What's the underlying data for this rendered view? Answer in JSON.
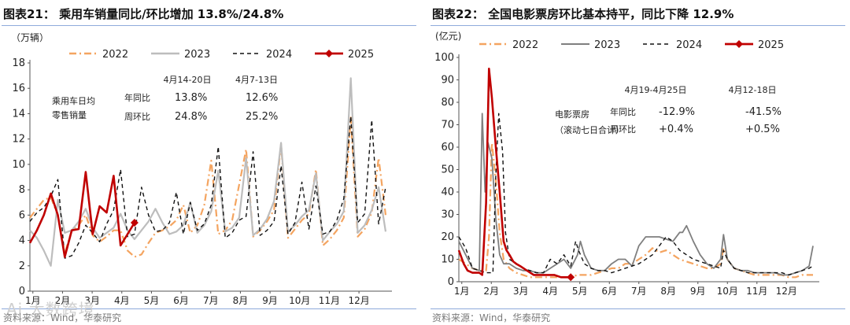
{
  "chart_data": [
    {
      "type": "line",
      "figure_label": "图表21：",
      "title": "乘用车销量同比/环比增加 13.8%/24.8%",
      "unit_label": "（万辆）",
      "ylim": [
        0,
        18
      ],
      "yticks": [
        "0",
        "2",
        "4",
        "6",
        "8",
        "10",
        "12",
        "14",
        "16",
        "18"
      ],
      "xticks": [
        "1月",
        "2月",
        "3月",
        "4月",
        "5月",
        "6月",
        "7月",
        "8月",
        "9月",
        "10月",
        "11月",
        "12月"
      ],
      "x_unit": "week",
      "legend": [
        "2022",
        "2023",
        "2024",
        "2025"
      ],
      "colors": {
        "2022": "#f4a460",
        "2023": "#bdbdbd",
        "2024": "#111111",
        "2025": "#c00000"
      },
      "annotation": {
        "label_lines": [
          "乘用车日均",
          "零售销量"
        ],
        "col_headers": [
          "4月14-20日",
          "4月7-13日"
        ],
        "rows": [
          {
            "label": "年同比",
            "values": [
              "13.8%",
              "12.6%"
            ]
          },
          {
            "label": "周环比",
            "values": [
              "24.8%",
              "25.2%"
            ]
          }
        ]
      },
      "series": [
        {
          "name": "2022",
          "x": [
            0,
            1,
            2,
            3,
            4,
            5,
            6,
            7,
            8,
            9,
            10,
            11,
            12,
            13,
            14,
            15,
            16,
            17,
            18,
            19,
            20,
            21,
            22,
            23,
            24,
            25,
            26,
            27,
            28,
            29,
            30,
            31,
            32,
            33,
            34,
            35,
            36,
            37,
            38,
            39,
            40,
            41,
            42,
            43,
            44,
            45,
            46,
            47,
            48,
            49,
            50,
            51
          ],
          "y": [
            5.8,
            6.5,
            7.2,
            7.4,
            6.0,
            3.0,
            4.8,
            5.2,
            6.0,
            4.4,
            3.9,
            4.3,
            4.8,
            4.8,
            3.2,
            2.7,
            2.9,
            3.8,
            4.6,
            4.8,
            5.1,
            5.6,
            6.8,
            4.6,
            5.2,
            6.8,
            10.3,
            4.5,
            4.8,
            5.6,
            8.4,
            11.2,
            4.3,
            4.8,
            5.5,
            6.4,
            11.6,
            4.2,
            4.9,
            5.6,
            6.1,
            9.6,
            3.6,
            4.1,
            4.8,
            5.8,
            13.7,
            4.3,
            4.9,
            6.2,
            10.5,
            6.0
          ]
        },
        {
          "name": "2023",
          "x": [
            0,
            1,
            2,
            3,
            4,
            5,
            6,
            7,
            8,
            9,
            10,
            11,
            12,
            13,
            14,
            15,
            16,
            17,
            18,
            19,
            20,
            21,
            22,
            23,
            24,
            25,
            26,
            27,
            28,
            29,
            30,
            31,
            32,
            33,
            34,
            35,
            36,
            37,
            38,
            39,
            40,
            41,
            42,
            43,
            44,
            45,
            46,
            47,
            48,
            49,
            50,
            51
          ],
          "y": [
            4.8,
            4.2,
            3.2,
            2.0,
            7.2,
            4.6,
            4.8,
            5.5,
            6.5,
            5.0,
            4.2,
            4.6,
            5.0,
            6.1,
            4.8,
            4.1,
            4.8,
            5.5,
            6.5,
            5.4,
            4.5,
            4.7,
            5.2,
            7.0,
            4.6,
            5.2,
            6.3,
            9.5,
            4.7,
            5.0,
            5.8,
            10.5,
            4.4,
            4.9,
            5.7,
            7.1,
            11.7,
            4.7,
            5.2,
            5.9,
            6.4,
            9.3,
            4.0,
            4.7,
            5.3,
            6.3,
            16.8,
            4.6,
            5.2,
            6.4,
            8.2,
            4.7
          ]
        },
        {
          "name": "2024",
          "x": [
            0,
            1,
            2,
            3,
            4,
            5,
            6,
            7,
            8,
            9,
            10,
            11,
            12,
            13,
            14,
            15,
            16,
            17,
            18,
            19,
            20,
            21,
            22,
            23,
            24,
            25,
            26,
            27,
            28,
            29,
            30,
            31,
            32,
            33,
            34,
            35,
            36,
            37,
            38,
            39,
            40,
            41,
            42,
            43,
            44,
            45,
            46,
            47,
            48,
            49,
            50,
            51
          ],
          "y": [
            5.5,
            6.2,
            6.6,
            7.5,
            8.8,
            2.6,
            2.8,
            3.8,
            5.2,
            4.6,
            3.9,
            5.3,
            6.4,
            9.6,
            4.3,
            4.5,
            8.2,
            6.0,
            4.7,
            4.8,
            5.4,
            7.8,
            4.5,
            7.0,
            4.8,
            5.3,
            6.8,
            11.4,
            4.2,
            4.6,
            5.6,
            5.9,
            11.0,
            4.4,
            4.8,
            5.5,
            9.9,
            4.5,
            5.4,
            8.6,
            4.9,
            8.3,
            4.5,
            4.7,
            5.6,
            7.3,
            13.8,
            5.4,
            6.1,
            13.5,
            5.3,
            8.2
          ]
        },
        {
          "name": "2025",
          "x": [
            0,
            1,
            2,
            3,
            4,
            5,
            6,
            7,
            8,
            9,
            10,
            11,
            12,
            13,
            14,
            15
          ],
          "y": [
            3.8,
            4.8,
            6.0,
            7.7,
            6.0,
            2.7,
            4.8,
            4.9,
            9.4,
            4.5,
            6.7,
            6.2,
            9.1,
            3.6,
            4.5,
            5.4
          ]
        }
      ]
    },
    {
      "type": "line",
      "figure_label": "图表22：",
      "title": "全国电影票房环比基本持平，同比下降 12.9%",
      "unit_label": "(亿元)",
      "ylim": [
        0,
        100
      ],
      "yticks": [
        "0",
        "10",
        "20",
        "30",
        "40",
        "50",
        "60",
        "70",
        "80",
        "90",
        "100"
      ],
      "xticks": [
        "1月",
        "2月",
        "3月",
        "4月",
        "5月",
        "6月",
        "7月",
        "8月",
        "9月",
        "10月",
        "11月",
        "12月"
      ],
      "x_unit": "day",
      "legend": [
        "2022",
        "2023",
        "2024",
        "2025"
      ],
      "colors": {
        "2022": "#f4a460",
        "2023": "#7f7f7f",
        "2024": "#111111",
        "2025": "#c00000"
      },
      "annotation": {
        "label_lines": [
          "电影票房",
          "（滚动七日合计）"
        ],
        "col_headers": [
          "4月19-4月25日",
          "4月12-18日"
        ],
        "rows": [
          {
            "label": "年同比",
            "values": [
              "-12.9%",
              "-41.5%"
            ]
          },
          {
            "label": "周环比",
            "values": [
              "+0.4%",
              "+0.5%"
            ]
          }
        ]
      },
      "series": [
        {
          "name": "2022",
          "x": [
            0,
            7,
            14,
            21,
            28,
            31,
            34,
            38,
            42,
            46,
            52,
            59,
            66,
            73,
            80,
            87,
            94,
            101,
            108,
            115,
            122,
            129,
            136,
            143,
            150,
            157,
            164,
            171,
            178,
            185,
            192,
            199,
            206,
            213,
            220,
            227,
            234,
            241,
            248,
            255,
            262,
            269,
            272,
            276,
            283,
            290,
            297,
            304,
            311,
            318,
            325,
            332,
            339,
            346,
            353,
            360,
            364
          ],
          "y": [
            10,
            8,
            6,
            5,
            5,
            20,
            62,
            45,
            22,
            10,
            6,
            4,
            3,
            2,
            2,
            2,
            2,
            2,
            2,
            2,
            3,
            3,
            3,
            4,
            5,
            6,
            6,
            8,
            8,
            10,
            12,
            15,
            13,
            14,
            12,
            10,
            9,
            8,
            7,
            6,
            6,
            8,
            15,
            10,
            6,
            5,
            4,
            3,
            3,
            3,
            3,
            3,
            2,
            2,
            3,
            3,
            3
          ]
        },
        {
          "name": "2023",
          "x": [
            0,
            7,
            14,
            21,
            24,
            27,
            30,
            34,
            38,
            42,
            46,
            52,
            59,
            66,
            73,
            80,
            87,
            94,
            101,
            108,
            115,
            122,
            125,
            129,
            136,
            143,
            150,
            157,
            164,
            171,
            178,
            185,
            192,
            199,
            206,
            213,
            220,
            227,
            230,
            234,
            241,
            248,
            255,
            262,
            269,
            272,
            276,
            283,
            290,
            297,
            304,
            311,
            318,
            325,
            332,
            339,
            346,
            353,
            360,
            364
          ],
          "y": [
            18,
            12,
            6,
            5,
            75,
            40,
            62,
            55,
            28,
            12,
            8,
            8,
            6,
            5,
            5,
            4,
            4,
            6,
            8,
            10,
            6,
            12,
            18,
            12,
            6,
            5,
            5,
            8,
            10,
            10,
            7,
            16,
            20,
            20,
            20,
            19,
            18,
            22,
            22,
            25,
            18,
            12,
            8,
            6,
            10,
            21,
            10,
            6,
            5,
            5,
            4,
            4,
            4,
            4,
            3,
            3,
            4,
            5,
            7,
            16
          ]
        },
        {
          "name": "2024",
          "x": [
            0,
            7,
            14,
            21,
            28,
            35,
            38,
            41,
            45,
            48,
            52,
            59,
            66,
            73,
            80,
            87,
            94,
            101,
            108,
            115,
            120,
            123,
            129,
            136,
            143,
            150,
            157,
            164,
            171,
            178,
            185,
            192,
            199,
            206,
            213,
            220,
            227,
            234,
            241,
            248,
            255,
            262,
            269,
            272,
            276,
            283,
            290,
            297,
            304,
            311,
            318,
            325,
            332,
            339,
            346,
            353,
            360,
            364
          ],
          "y": [
            20,
            15,
            6,
            5,
            4,
            4,
            48,
            75,
            58,
            22,
            10,
            8,
            6,
            5,
            4,
            4,
            10,
            8,
            12,
            7,
            18,
            14,
            8,
            6,
            5,
            5,
            4,
            5,
            6,
            7,
            8,
            10,
            12,
            16,
            20,
            18,
            14,
            12,
            10,
            9,
            8,
            7,
            6,
            14,
            10,
            6,
            5,
            4,
            4,
            4,
            4,
            4,
            4,
            3,
            4,
            5,
            6,
            7
          ]
        },
        {
          "name": "2025",
          "x": [
            0,
            5,
            9,
            14,
            21,
            24,
            28,
            31,
            34,
            38,
            42,
            46,
            49,
            52,
            56,
            59,
            63,
            70,
            77,
            84,
            91,
            98,
            105,
            112,
            115
          ],
          "y": [
            14,
            8,
            5,
            4,
            4,
            3,
            35,
            95,
            82,
            60,
            40,
            18,
            14,
            12,
            9,
            8,
            7,
            5,
            3,
            3,
            3,
            3,
            2,
            2,
            2
          ]
        }
      ]
    }
  ],
  "source": "资料来源：Wind，华泰研究",
  "watermark": "Ai 大数跨境"
}
